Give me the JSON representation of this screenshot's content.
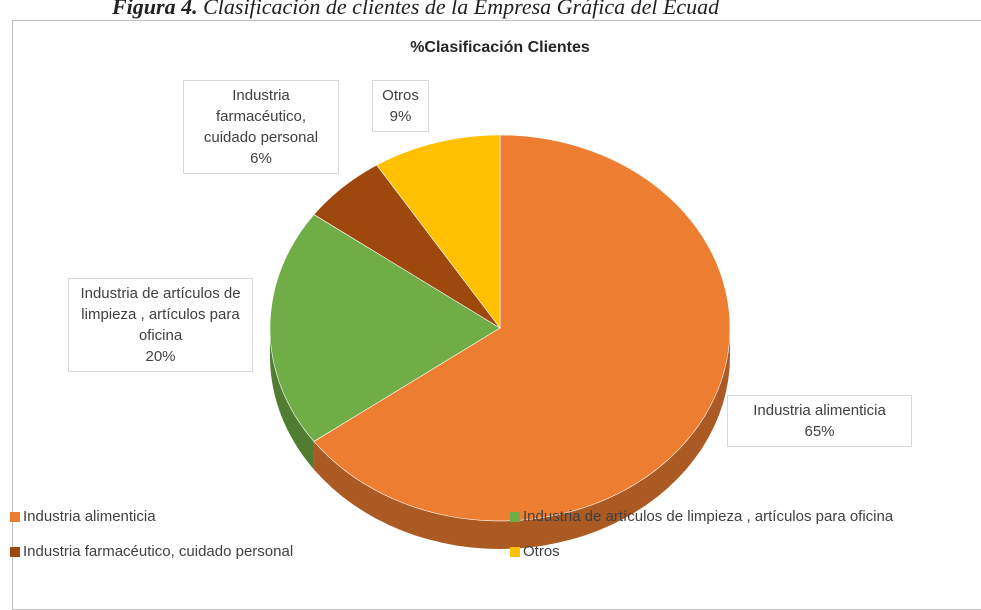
{
  "caption": {
    "number": "Figura 4.",
    "text": "Clasificación de clientes de la Empresa Gráfica del Ecuad"
  },
  "chart_data": {
    "type": "pie3d",
    "title": "%Clasificación Clientes",
    "categories": [
      "Industria alimenticia",
      "Industria de artículos de limpieza , artículos para oficina",
      "Industria farmacéutico, cuidado personal",
      "Otros"
    ],
    "values": [
      65,
      20,
      6,
      9
    ],
    "value_labels": [
      "65%",
      "20%",
      "6%",
      "9%"
    ],
    "colors": [
      "#ED7D31",
      "#70AD47",
      "#9E480E",
      "#FFC000"
    ],
    "legend": "bottom"
  }
}
